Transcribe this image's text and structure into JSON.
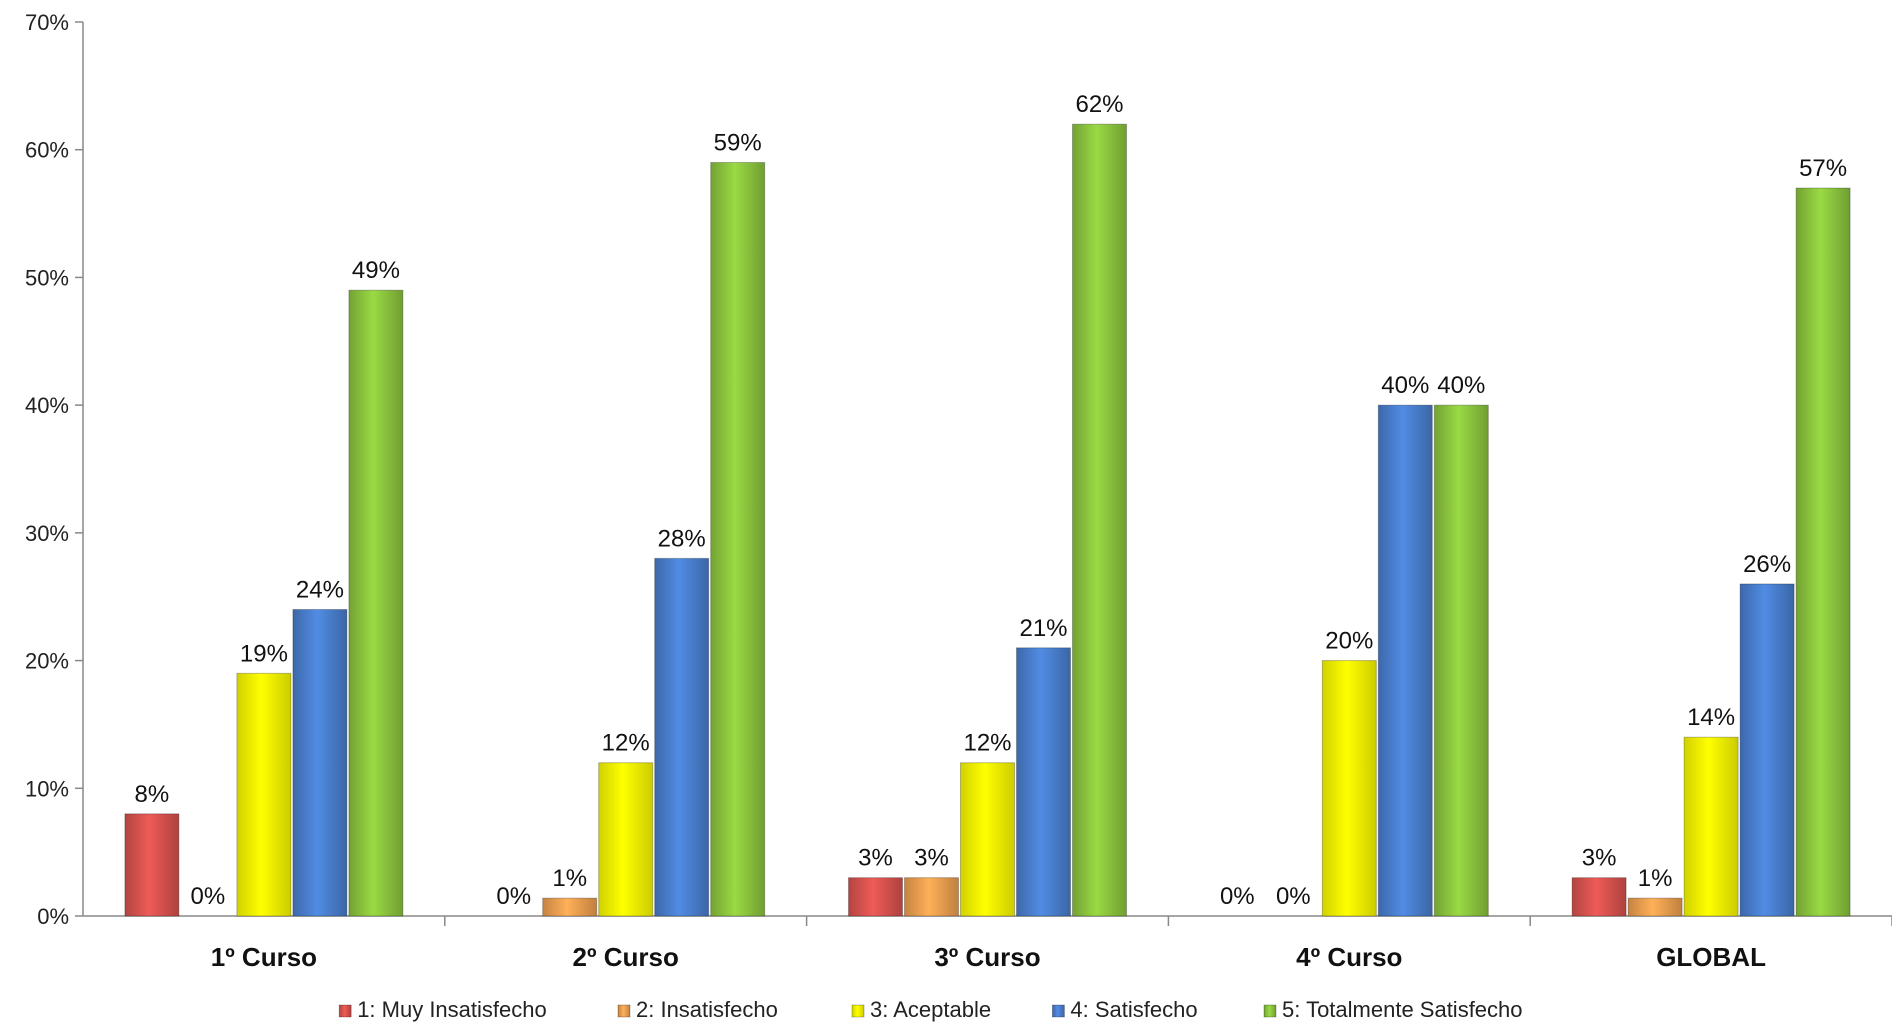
{
  "chart_data": {
    "type": "bar",
    "categories": [
      "1º Curso",
      "2º Curso",
      "3º Curso",
      "4º Curso",
      "GLOBAL"
    ],
    "series": [
      {
        "name": "1: Muy Insatisfecho",
        "values": [
          8,
          0,
          3,
          0,
          3
        ],
        "labels": [
          "8%",
          "0%",
          "3%",
          "0%",
          "3%"
        ],
        "color": "#d9534f"
      },
      {
        "name": "2: Insatisfecho",
        "values": [
          0,
          1.4,
          3,
          0,
          1.4
        ],
        "labels": [
          "0%",
          "1%",
          "3%",
          "0%",
          "1%"
        ],
        "color": "#f0a050"
      },
      {
        "name": "3: Aceptable",
        "values": [
          19,
          12,
          12,
          20,
          14
        ],
        "labels": [
          "19%",
          "12%",
          "12%",
          "20%",
          "14%"
        ],
        "color": "#ffff00"
      },
      {
        "name": "4: Satisfecho",
        "values": [
          24,
          28,
          21,
          40,
          26
        ],
        "labels": [
          "24%",
          "28%",
          "21%",
          "40%",
          "26%"
        ],
        "color": "#4a7fcf"
      },
      {
        "name": "5: Totalmente Satisfecho",
        "values": [
          49,
          59,
          62,
          40,
          57
        ],
        "labels": [
          "49%",
          "59%",
          "62%",
          "40%",
          "57%"
        ],
        "color": "#8cc63e"
      }
    ],
    "y_ticks": [
      "0%",
      "10%",
      "20%",
      "30%",
      "40%",
      "50%",
      "60%",
      "70%"
    ],
    "ylim": [
      0,
      70
    ],
    "legend_position": "bottom",
    "grid": false
  }
}
